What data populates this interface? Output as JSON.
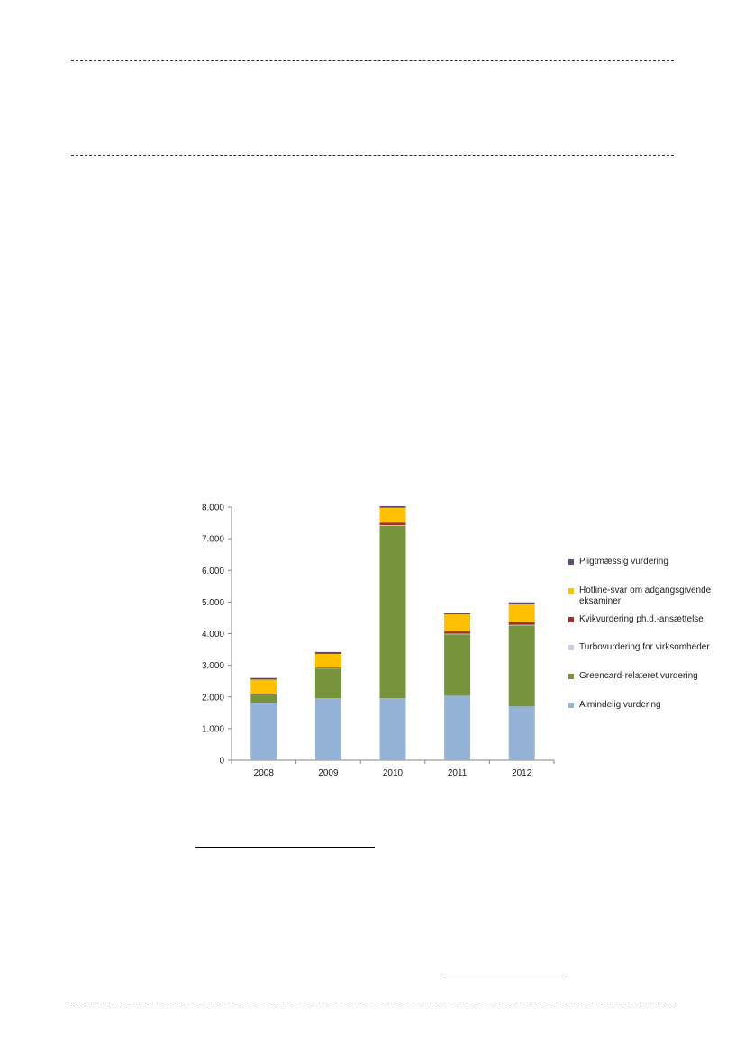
{
  "chart_data": {
    "type": "bar",
    "stacked": true,
    "categories": [
      "2008",
      "2009",
      "2010",
      "2011",
      "2012"
    ],
    "series": [
      {
        "name": "Almindelig vurdering",
        "color": "#95b3d7",
        "values": [
          1820,
          1960,
          1960,
          2040,
          1700
        ]
      },
      {
        "name": "Greencard-relateret vurdering",
        "color": "#77933c",
        "values": [
          260,
          940,
          5450,
          1940,
          2560
        ]
      },
      {
        "name": "Turbovurdering for virksomheder",
        "color": "#c5cde6",
        "values": [
          10,
          10,
          20,
          20,
          20
        ]
      },
      {
        "name": "Kvikvurdering ph.d.-ansættelse",
        "color": "#a0302c",
        "values": [
          10,
          20,
          80,
          70,
          80
        ]
      },
      {
        "name": "Hotline-svar om adgangsgivende eksaminer",
        "color": "#ffc000",
        "values": [
          450,
          430,
          470,
          540,
          570
        ]
      },
      {
        "name": "Pligtmæssig vurdering",
        "color": "#604a7b",
        "values": [
          50,
          60,
          50,
          50,
          60
        ]
      }
    ],
    "legend_order": [
      5,
      4,
      3,
      2,
      1,
      0
    ],
    "y_ticks": [
      "0",
      "1.000",
      "2.000",
      "3.000",
      "4.000",
      "5.000",
      "6.000",
      "7.000",
      "8.000"
    ],
    "ylim": [
      0,
      8000
    ],
    "grid": false,
    "legend_position": "right"
  }
}
